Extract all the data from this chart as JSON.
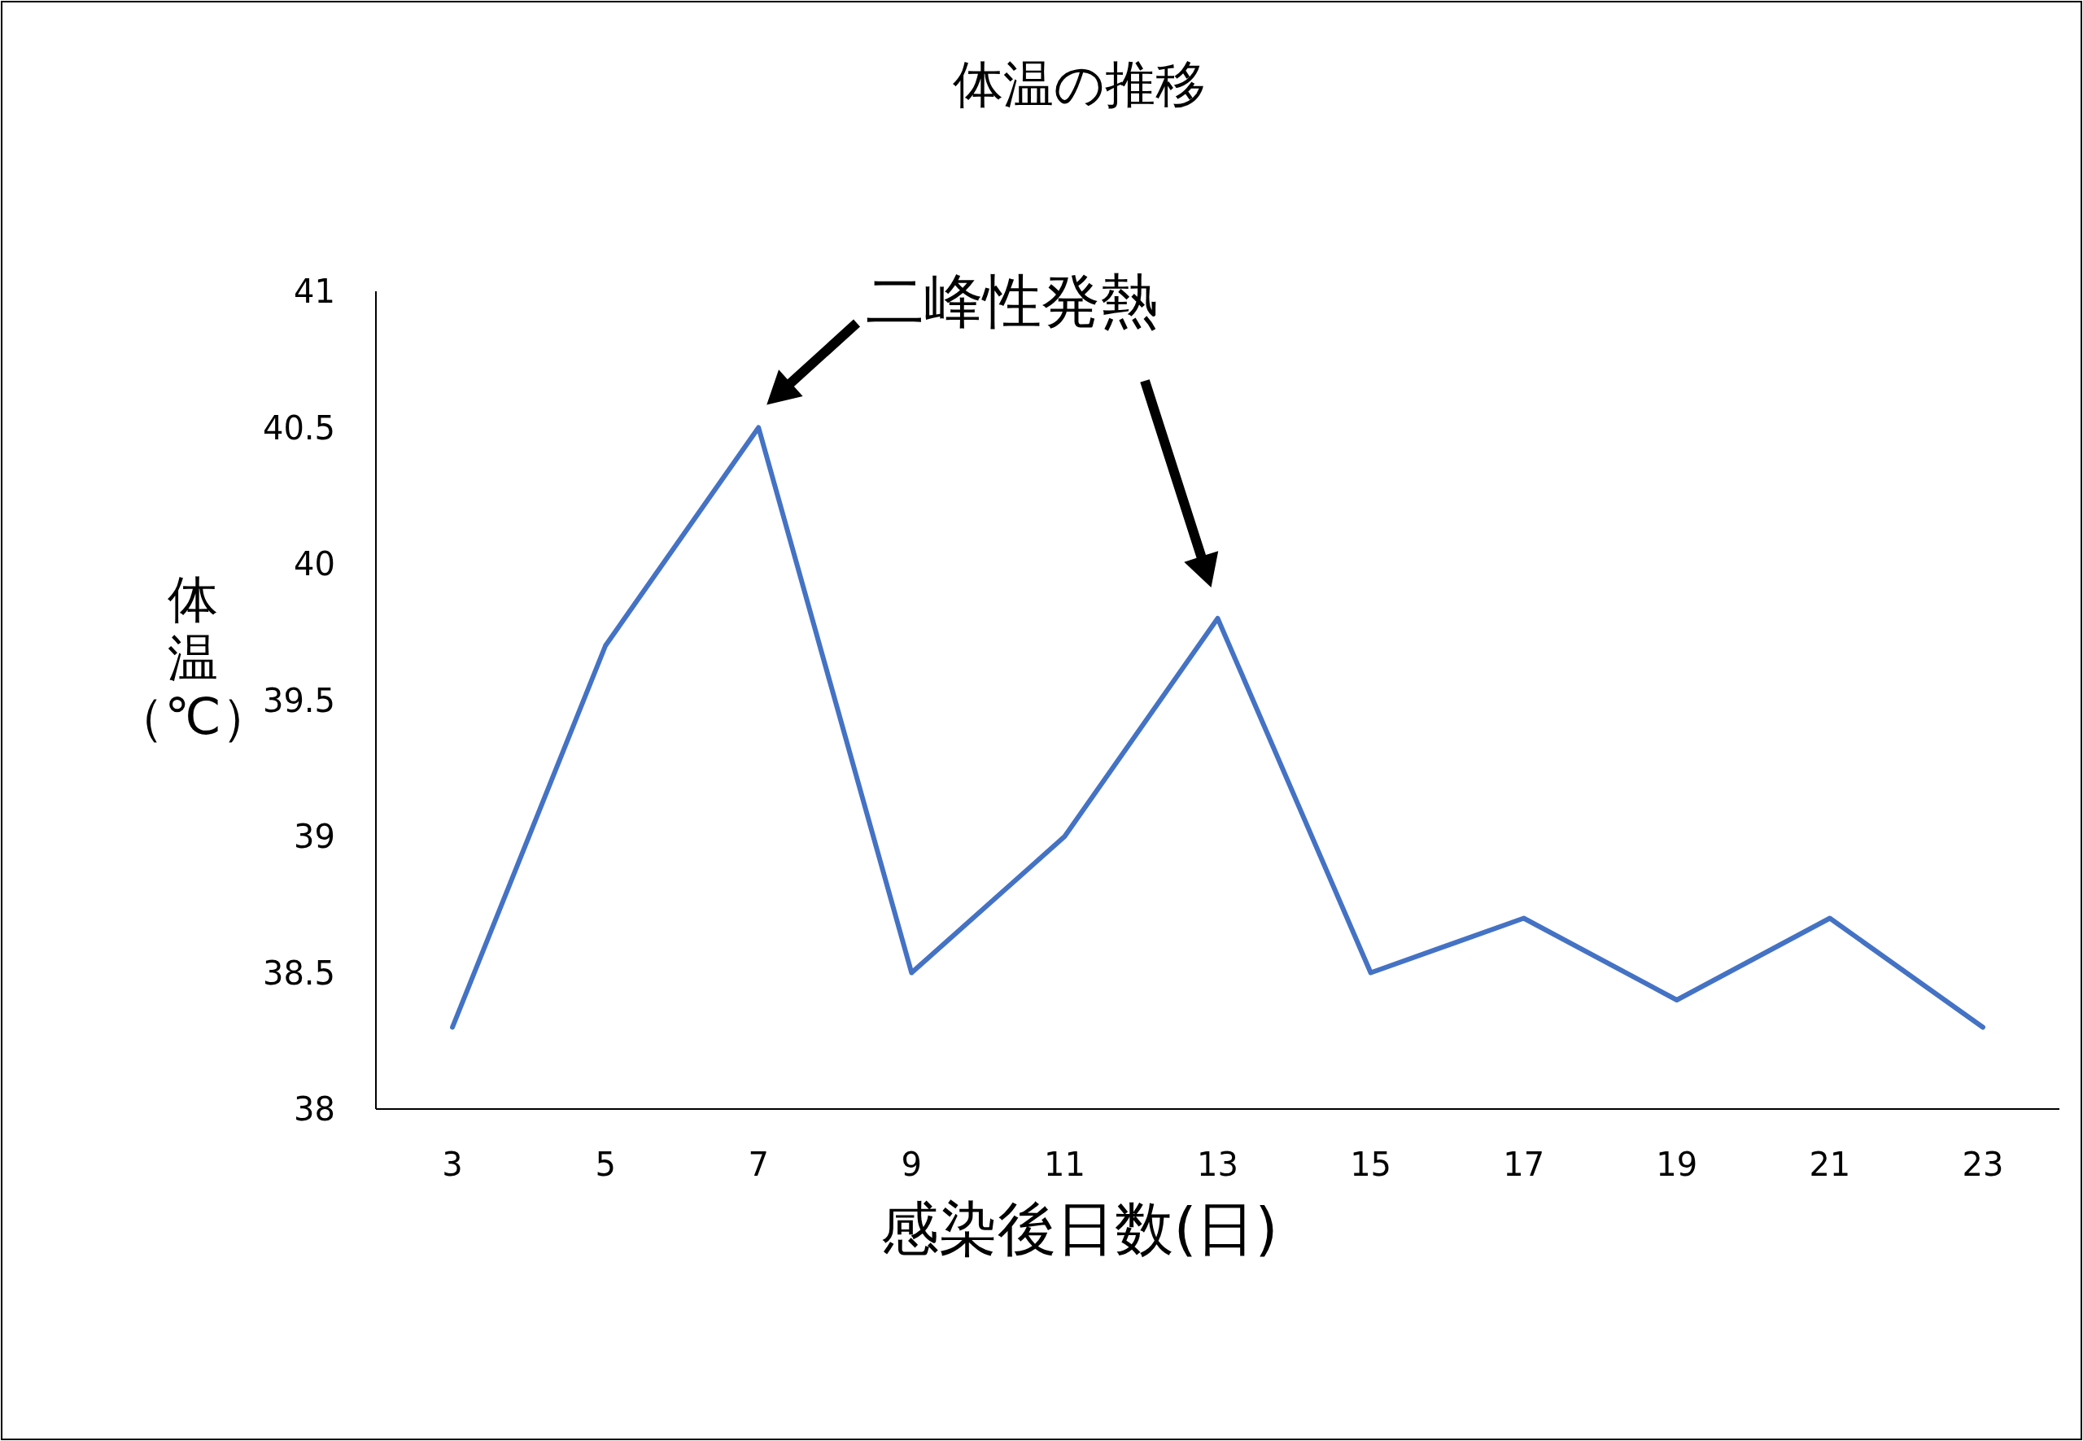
{
  "chart_data": {
    "type": "line",
    "title": "体温の推移",
    "xlabel": "感染後日数(日)",
    "ylabel": "体温（℃）",
    "categories": [
      "3",
      "5",
      "7",
      "9",
      "11",
      "13",
      "15",
      "17",
      "19",
      "21",
      "23"
    ],
    "series": [
      {
        "color": "#4472c4",
        "values": [
          38.3,
          39.7,
          40.5,
          38.5,
          39.0,
          39.8,
          38.5,
          38.7,
          38.4,
          38.7,
          38.3
        ]
      }
    ],
    "ylim": [
      38,
      41
    ],
    "yticks": [
      38,
      38.5,
      39,
      39.5,
      40,
      40.5,
      41
    ],
    "grid": false,
    "marker": "none",
    "line_style": "solid",
    "annotations": [
      "二峰性発熱"
    ]
  }
}
